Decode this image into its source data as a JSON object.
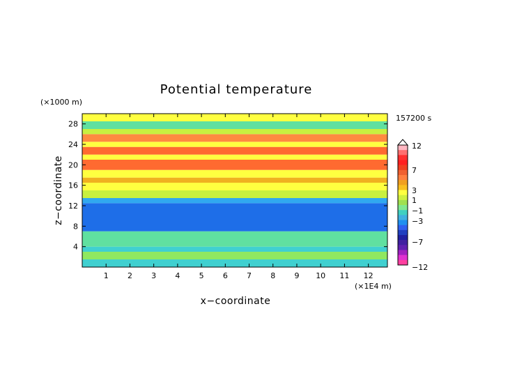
{
  "chart_data": {
    "type": "heatmap",
    "title": "Potential temperature",
    "xlabel": "x−coordinate",
    "ylabel": "z−coordinate",
    "x_unit": "(×1E4 m)",
    "y_unit": "(×1000 m)",
    "time_label": "157200 s",
    "xlim": [
      0,
      12.8
    ],
    "ylim": [
      0,
      30
    ],
    "x_ticks": [
      "1",
      "2",
      "3",
      "4",
      "5",
      "6",
      "7",
      "8",
      "9",
      "10",
      "11",
      "12"
    ],
    "y_ticks": [
      "4",
      "8",
      "12",
      "16",
      "20",
      "24",
      "28"
    ],
    "colorbar": {
      "labels": [
        "12",
        "7",
        "3",
        "1",
        "−1",
        "−3",
        "−7",
        "−12"
      ],
      "colors": [
        "#ffb6c1",
        "#ff7070",
        "#ff3030",
        "#ff2020",
        "#f04020",
        "#f06030",
        "#ff8040",
        "#f0a020",
        "#f8c020",
        "#ffff40",
        "#d0f040",
        "#a0e050",
        "#80e890",
        "#40d0c0",
        "#40b0e0",
        "#2090f0",
        "#3060f0",
        "#2040c0",
        "#2020a0",
        "#4020a0",
        "#6020b0",
        "#a020c0",
        "#e030d0",
        "#ff40a0"
      ]
    },
    "bands": [
      {
        "z": [
          0,
          1.5
        ],
        "value": -2
      },
      {
        "z": [
          1.5,
          3
        ],
        "value": -1.2
      },
      {
        "z": [
          3,
          4
        ],
        "value": -1.8
      },
      {
        "z": [
          4,
          7
        ],
        "value": -1.5
      },
      {
        "z": [
          7,
          12.5
        ],
        "value": -3.5
      },
      {
        "z": [
          12.5,
          13.5
        ],
        "value": -2.5
      },
      {
        "z": [
          13.5,
          15
        ],
        "value": -0.5
      },
      {
        "z": [
          15,
          16.5
        ],
        "value": 1
      },
      {
        "z": [
          16.5,
          17.5
        ],
        "value": 2
      },
      {
        "z": [
          17.5,
          19
        ],
        "value": 0.8
      },
      {
        "z": [
          19,
          21
        ],
        "value": 3.5
      },
      {
        "z": [
          21,
          22
        ],
        "value": 0.5
      },
      {
        "z": [
          22,
          23.5
        ],
        "value": 4
      },
      {
        "z": [
          23.5,
          24.5
        ],
        "value": 1
      },
      {
        "z": [
          24.5,
          26
        ],
        "value": 3
      },
      {
        "z": [
          26,
          27
        ],
        "value": 0
      },
      {
        "z": [
          27,
          28.5
        ],
        "value": -1.5
      },
      {
        "z": [
          28.5,
          30
        ],
        "value": 0.5
      }
    ]
  }
}
